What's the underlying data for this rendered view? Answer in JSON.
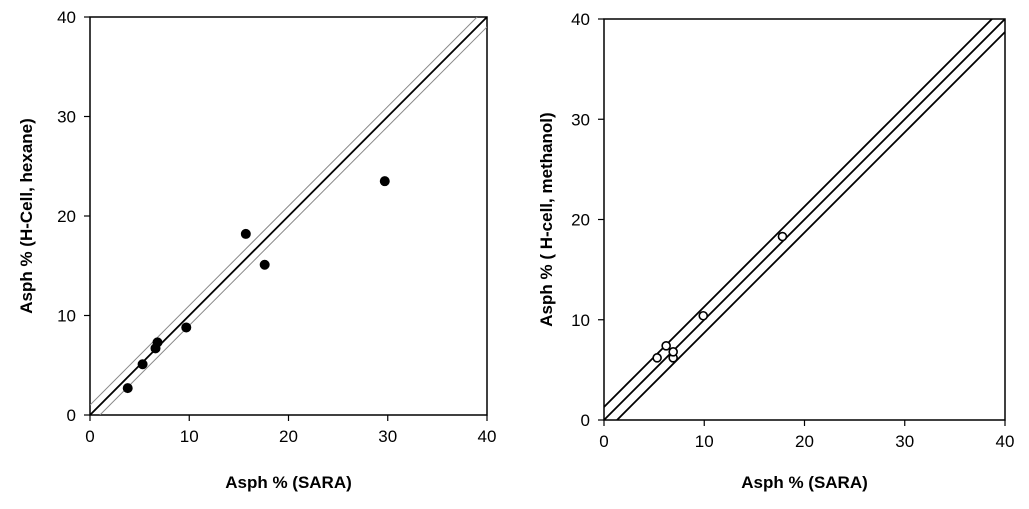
{
  "chart_data": [
    {
      "type": "scatter",
      "title": "",
      "xlabel": "Asph % (SARA)",
      "ylabel": "Asph % (H-Cell, hexane)",
      "xlim": [
        0,
        40
      ],
      "ylim": [
        0,
        40
      ],
      "xticks": [
        "0",
        "10",
        "20",
        "30",
        "40"
      ],
      "yticks": [
        "0",
        "10",
        "20",
        "30",
        "40"
      ],
      "grid": false,
      "series": [
        {
          "marker": "filled-circle",
          "color": "#000000",
          "x": [
            3.8,
            5.3,
            6.6,
            6.8,
            9.7,
            15.7,
            17.6,
            29.7
          ],
          "y": [
            2.7,
            5.1,
            6.7,
            7.3,
            8.8,
            18.2,
            15.1,
            23.5
          ]
        }
      ],
      "reference_lines": [
        {
          "style": "bold",
          "color": "#000000",
          "from": [
            0,
            0
          ],
          "to": [
            40,
            40
          ]
        },
        {
          "style": "thin",
          "color": "#888888",
          "from": [
            0,
            1
          ],
          "to": [
            39,
            40
          ]
        },
        {
          "style": "thin",
          "color": "#888888",
          "from": [
            1,
            0
          ],
          "to": [
            40,
            39
          ]
        }
      ]
    },
    {
      "type": "scatter",
      "title": "",
      "xlabel": "Asph % (SARA)",
      "ylabel": "Asph % ( H-cell, methanol)",
      "xlim": [
        0,
        40
      ],
      "ylim": [
        0,
        40
      ],
      "xticks": [
        "0",
        "10",
        "20",
        "30",
        "40"
      ],
      "yticks": [
        "0",
        "10",
        "20",
        "30",
        "40"
      ],
      "grid": false,
      "series": [
        {
          "marker": "open-circle",
          "color": "#000000",
          "x": [
            5.3,
            6.2,
            6.9,
            6.9,
            9.9,
            17.8
          ],
          "y": [
            6.2,
            7.4,
            6.2,
            6.8,
            10.4,
            18.3
          ]
        }
      ],
      "reference_lines": [
        {
          "style": "bold",
          "color": "#000000",
          "from": [
            0,
            0
          ],
          "to": [
            40,
            40
          ]
        },
        {
          "style": "bold",
          "color": "#000000",
          "from": [
            0,
            1.3
          ],
          "to": [
            38.7,
            40
          ]
        },
        {
          "style": "bold",
          "color": "#000000",
          "from": [
            1.3,
            0
          ],
          "to": [
            40,
            38.7
          ]
        }
      ]
    }
  ]
}
